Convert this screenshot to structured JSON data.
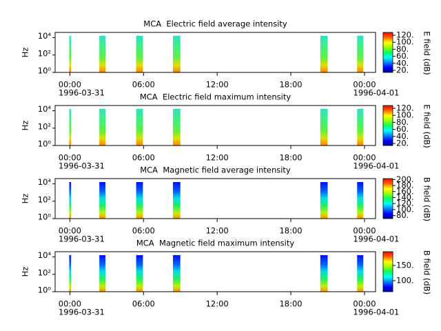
{
  "chart_data": [
    {
      "type": "spectrogram",
      "title": "MCA  Electric field average intensity",
      "ylabel": "Hz",
      "log_y": true,
      "ylim": [
        1,
        40000
      ],
      "yticks": [
        {
          "value": 1,
          "label": "10⁰"
        },
        {
          "value": 100,
          "label": "10²"
        },
        {
          "value": 10000,
          "label": "10⁴"
        }
      ],
      "xlim": [
        -1.2,
        24.9
      ],
      "xticks": [
        {
          "value": 0,
          "label": "00:00"
        },
        {
          "value": 6,
          "label": "06:00"
        },
        {
          "value": 12,
          "label": "12:00"
        },
        {
          "value": 18,
          "label": "18:00"
        },
        {
          "value": 24,
          "label": "00:00"
        }
      ],
      "date_labels": [
        {
          "value": 0,
          "label": "1996-03-31"
        },
        {
          "value": 24,
          "label": "1996-04-01"
        }
      ],
      "intervals": [
        [
          -0.05,
          0.1
        ],
        [
          2.4,
          2.9
        ],
        [
          5.4,
          5.95
        ],
        [
          8.4,
          9.0
        ],
        [
          20.4,
          21.0
        ],
        [
          23.4,
          23.9
        ]
      ],
      "palette": "electric",
      "colorbar": {
        "label": "E field (dB)",
        "lim": [
          14,
          128
        ],
        "ticks": [
          {
            "value": 20,
            "label": "20."
          },
          {
            "value": 40,
            "label": "40."
          },
          {
            "value": 60,
            "label": "60."
          },
          {
            "value": 80,
            "label": "80."
          },
          {
            "value": 100,
            "label": "100."
          },
          {
            "value": 120,
            "label": "120."
          }
        ]
      }
    },
    {
      "type": "spectrogram",
      "title": "MCA  Electric field maximum intensity",
      "ylabel": "Hz",
      "log_y": true,
      "ylim": [
        1,
        40000
      ],
      "yticks": [
        {
          "value": 1,
          "label": "10⁰"
        },
        {
          "value": 100,
          "label": "10²"
        },
        {
          "value": 10000,
          "label": "10⁴"
        }
      ],
      "xlim": [
        -1.2,
        24.9
      ],
      "xticks": [
        {
          "value": 0,
          "label": "00:00"
        },
        {
          "value": 6,
          "label": "06:00"
        },
        {
          "value": 12,
          "label": "12:00"
        },
        {
          "value": 18,
          "label": "18:00"
        },
        {
          "value": 24,
          "label": "00:00"
        }
      ],
      "date_labels": [
        {
          "value": 0,
          "label": "1996-03-31"
        },
        {
          "value": 24,
          "label": "1996-04-01"
        }
      ],
      "intervals": [
        [
          -0.05,
          0.1
        ],
        [
          2.4,
          2.9
        ],
        [
          5.4,
          5.95
        ],
        [
          8.4,
          9.0
        ],
        [
          20.4,
          21.0
        ],
        [
          23.4,
          23.9
        ]
      ],
      "palette": "electric",
      "colorbar": {
        "label": "E field (dB)",
        "lim": [
          14,
          128
        ],
        "ticks": [
          {
            "value": 20,
            "label": "20."
          },
          {
            "value": 40,
            "label": "40."
          },
          {
            "value": 60,
            "label": "60."
          },
          {
            "value": 80,
            "label": "80."
          },
          {
            "value": 100,
            "label": "100."
          },
          {
            "value": 120,
            "label": "120."
          }
        ]
      }
    },
    {
      "type": "spectrogram",
      "title": "MCA  Magnetic field average intensity",
      "ylabel": "Hz",
      "log_y": true,
      "ylim": [
        1,
        40000
      ],
      "yticks": [
        {
          "value": 1,
          "label": "10⁰"
        },
        {
          "value": 100,
          "label": "10²"
        },
        {
          "value": 10000,
          "label": "10⁴"
        }
      ],
      "xlim": [
        -1.2,
        24.9
      ],
      "xticks": [
        {
          "value": 0,
          "label": "00:00"
        },
        {
          "value": 6,
          "label": "06:00"
        },
        {
          "value": 12,
          "label": "12:00"
        },
        {
          "value": 18,
          "label": "18:00"
        },
        {
          "value": 24,
          "label": "00:00"
        }
      ],
      "date_labels": [
        {
          "value": 0,
          "label": "1996-03-31"
        },
        {
          "value": 24,
          "label": "1996-04-01"
        }
      ],
      "intervals": [
        [
          -0.05,
          0.1
        ],
        [
          2.4,
          2.9
        ],
        [
          5.4,
          5.95
        ],
        [
          8.4,
          9.0
        ],
        [
          20.4,
          21.0
        ],
        [
          23.4,
          23.9
        ]
      ],
      "palette": "magnetic",
      "colorbar": {
        "label": "B field (dB)",
        "lim": [
          70,
          203
        ],
        "ticks": [
          {
            "value": 80,
            "label": "80."
          },
          {
            "value": 100,
            "label": "100."
          },
          {
            "value": 120,
            "label": "120."
          },
          {
            "value": 140,
            "label": "140."
          },
          {
            "value": 160,
            "label": "160."
          },
          {
            "value": 180,
            "label": "180."
          },
          {
            "value": 200,
            "label": "200."
          }
        ]
      }
    },
    {
      "type": "spectrogram",
      "title": "MCA  Magnetic field maximum intensity",
      "ylabel": "Hz",
      "log_y": true,
      "ylim": [
        1,
        40000
      ],
      "yticks": [
        {
          "value": 1,
          "label": "10⁰"
        },
        {
          "value": 100,
          "label": "10²"
        },
        {
          "value": 10000,
          "label": "10⁴"
        }
      ],
      "xlim": [
        -1.2,
        24.9
      ],
      "xticks": [
        {
          "value": 0,
          "label": "00:00"
        },
        {
          "value": 6,
          "label": "06:00"
        },
        {
          "value": 12,
          "label": "12:00"
        },
        {
          "value": 18,
          "label": "18:00"
        },
        {
          "value": 24,
          "label": "00:00"
        }
      ],
      "date_labels": [
        {
          "value": 0,
          "label": "1996-03-31"
        },
        {
          "value": 24,
          "label": "1996-04-01"
        }
      ],
      "intervals": [
        [
          -0.05,
          0.1
        ],
        [
          2.4,
          2.9
        ],
        [
          5.4,
          5.95
        ],
        [
          8.4,
          9.0
        ],
        [
          20.4,
          21.0
        ],
        [
          23.4,
          23.9
        ]
      ],
      "palette": "magnetic",
      "colorbar": {
        "label": "B field (dB)",
        "lim": [
          64,
          195
        ],
        "ticks": [
          {
            "value": 100,
            "label": "100."
          },
          {
            "value": 150,
            "label": "150."
          }
        ]
      }
    }
  ]
}
